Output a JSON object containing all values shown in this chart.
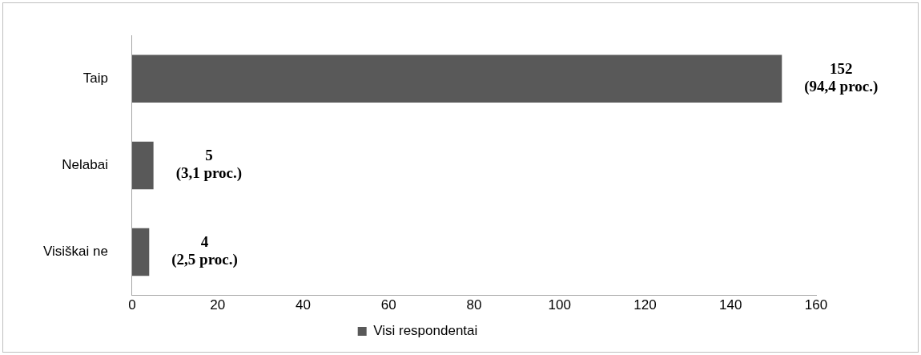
{
  "chart_data": {
    "type": "bar",
    "orientation": "horizontal",
    "categories": [
      "Taip",
      "Nelabai",
      "Visiškai ne"
    ],
    "series": [
      {
        "name": "Visi respondentai",
        "color": "#595959",
        "values": [
          152,
          5,
          4
        ],
        "value_labels": [
          "152\n(94,4 proc.)",
          "5\n(3,1 proc.)",
          "4\n(2,5 proc.)"
        ]
      }
    ],
    "xlim": [
      0,
      160
    ],
    "xticks": [
      0,
      20,
      40,
      60,
      80,
      100,
      120,
      140,
      160
    ],
    "grid": false,
    "legend": "bottom"
  }
}
